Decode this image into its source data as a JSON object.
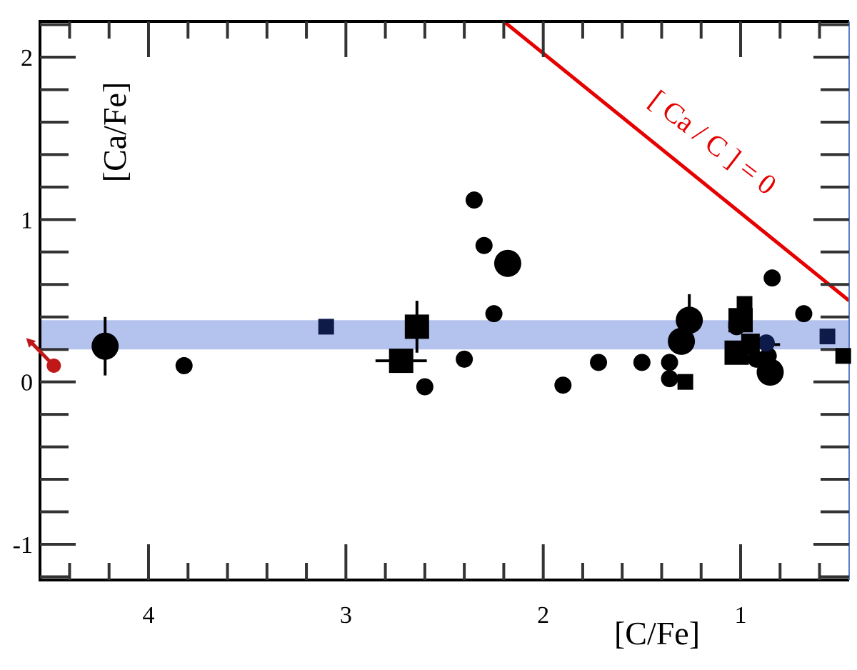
{
  "chart_data": {
    "type": "scatter",
    "title": "",
    "xlabel": "[C/Fe]",
    "ylabel": "[Ca/Fe]",
    "xlim": [
      4.55,
      0.45
    ],
    "ylim": [
      -1.22,
      2.22
    ],
    "x_reversed": true,
    "grid": false,
    "x_ticks": [
      4,
      3,
      2,
      1
    ],
    "x_tick_labels": [
      "4",
      "3",
      "2",
      "1"
    ],
    "y_ticks": [
      2,
      1,
      0,
      -1
    ],
    "y_tick_labels": [
      "2",
      "1",
      "0",
      "-1"
    ],
    "band": {
      "y_low": 0.2,
      "y_high": 0.38,
      "color": "#b4c2ee"
    },
    "reference_line": {
      "label": "[ Ca / C ] =  0",
      "color": "#e60000",
      "points": [
        [
          2.2,
          2.22
        ],
        [
          0.45,
          0.5
        ]
      ]
    },
    "series": [
      {
        "marker": "circle",
        "color": "#000000",
        "points": [
          {
            "x": 4.22,
            "y": 0.22,
            "size": "large"
          },
          {
            "x": 3.82,
            "y": 0.1,
            "size": "medium"
          },
          {
            "x": 2.6,
            "y": -0.03,
            "size": "medium"
          },
          {
            "x": 2.4,
            "y": 0.14,
            "size": "medium"
          },
          {
            "x": 2.35,
            "y": 1.12,
            "size": "medium"
          },
          {
            "x": 2.3,
            "y": 0.84,
            "size": "medium"
          },
          {
            "x": 2.25,
            "y": 0.42,
            "size": "medium"
          },
          {
            "x": 2.18,
            "y": 0.73,
            "size": "large"
          },
          {
            "x": 1.9,
            "y": -0.02,
            "size": "medium"
          },
          {
            "x": 1.72,
            "y": 0.12,
            "size": "medium"
          },
          {
            "x": 1.5,
            "y": 0.12,
            "size": "medium"
          },
          {
            "x": 1.36,
            "y": 0.12,
            "size": "medium"
          },
          {
            "x": 1.36,
            "y": 0.02,
            "size": "medium"
          },
          {
            "x": 1.3,
            "y": 0.25,
            "size": "large"
          },
          {
            "x": 1.26,
            "y": 0.38,
            "size": "large"
          },
          {
            "x": 1.02,
            "y": 0.34,
            "size": "medium"
          },
          {
            "x": 0.95,
            "y": 0.22,
            "size": "medium"
          },
          {
            "x": 0.92,
            "y": 0.14,
            "size": "medium"
          },
          {
            "x": 0.86,
            "y": 0.16,
            "size": "medium"
          },
          {
            "x": 0.85,
            "y": 0.06,
            "size": "large"
          },
          {
            "x": 0.84,
            "y": 0.64,
            "size": "medium"
          },
          {
            "x": 0.68,
            "y": 0.42,
            "size": "medium"
          }
        ]
      },
      {
        "marker": "circle",
        "color": "#0d1a4a",
        "points": [
          {
            "x": 1.02,
            "y": 0.36,
            "size": "medium"
          },
          {
            "x": 0.87,
            "y": 0.24,
            "size": "medium"
          }
        ]
      },
      {
        "marker": "square",
        "color": "#000000",
        "points": [
          {
            "x": 2.72,
            "y": 0.13,
            "size": "large"
          },
          {
            "x": 2.64,
            "y": 0.34,
            "size": "large"
          },
          {
            "x": 1.28,
            "y": 0.0,
            "size": "small"
          },
          {
            "x": 1.02,
            "y": 0.18,
            "size": "large"
          },
          {
            "x": 1.0,
            "y": 0.38,
            "size": "large"
          },
          {
            "x": 0.98,
            "y": 0.48,
            "size": "small"
          },
          {
            "x": 0.95,
            "y": 0.24,
            "size": "medium"
          },
          {
            "x": 0.48,
            "y": 0.16,
            "size": "small"
          }
        ]
      },
      {
        "marker": "square",
        "color": "#0d1a4a",
        "points": [
          {
            "x": 3.1,
            "y": 0.34,
            "size": "small"
          },
          {
            "x": 0.56,
            "y": 0.28,
            "size": "small"
          }
        ]
      },
      {
        "marker": "circle",
        "color": "#c01818",
        "points": [
          {
            "x": 4.48,
            "y": 0.1,
            "size": "small"
          }
        ]
      }
    ],
    "error_bars": [
      {
        "x": 4.22,
        "y": 0.22,
        "dy": 0.18
      },
      {
        "x": 2.64,
        "y": 0.34,
        "dy": 0.16
      },
      {
        "x": 2.72,
        "y": 0.13,
        "dx": 0.13
      },
      {
        "x": 1.26,
        "y": 0.38,
        "dy": 0.16
      },
      {
        "x": 0.9,
        "y": 0.23,
        "dx": 0.1
      }
    ],
    "arrows": [
      {
        "from_x": 4.48,
        "from_y": 0.1,
        "to_x": 4.62,
        "to_y": 0.27,
        "color": "#c01818"
      }
    ],
    "annotations": [
      {
        "text": "[ Ca / C ] =  0",
        "color": "#e60000"
      }
    ],
    "legend": "none"
  }
}
